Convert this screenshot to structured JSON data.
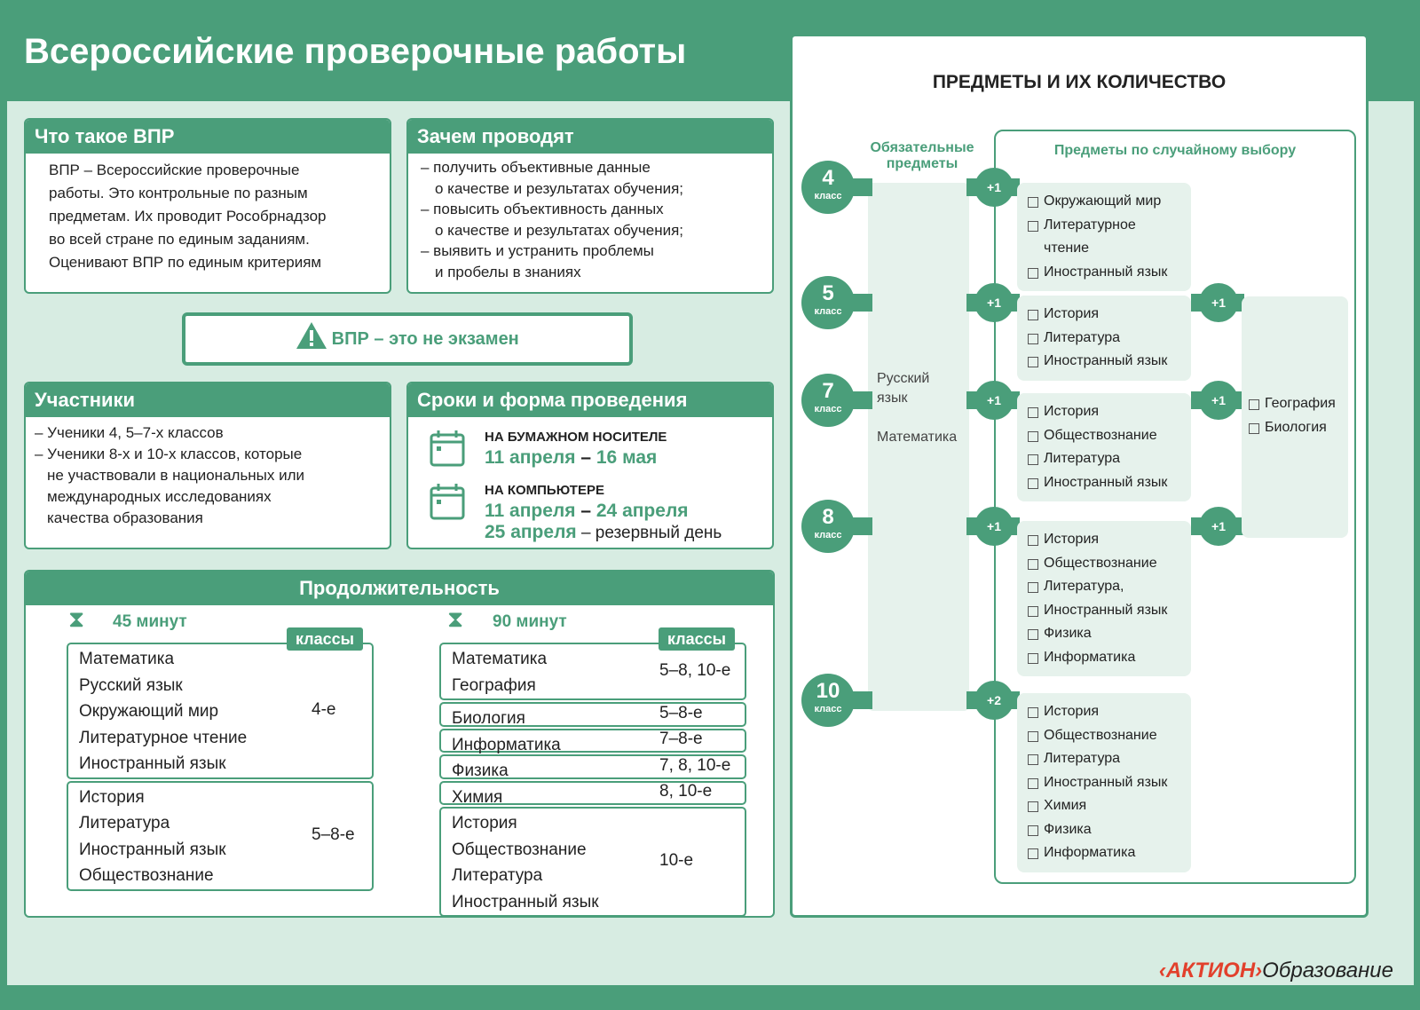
{
  "title": "Всероссийские проверочные работы",
  "what": {
    "heading": "Что такое ВПР",
    "lines": [
      "ВПР – Всероссийские проверочные",
      "работы. Это контрольные по разным",
      "предметам. Их проводит Рособрнадзор",
      "во всей стране по единым заданиям.",
      "Оценивают ВПР по единым критериям"
    ]
  },
  "why": {
    "heading": "Зачем проводят",
    "lines": [
      "– получить объективные данные",
      "о качестве и результатах обучения;",
      "– повысить объективность данных",
      "о качестве и результатах обучения;",
      "– выявить и устранить проблемы",
      "и пробелы в знаниях"
    ]
  },
  "warning": {
    "icon": "warning-icon",
    "text": "ВПР – это не экзамен"
  },
  "participants": {
    "heading": "Участники",
    "lines": [
      "– Ученики 4, 5–7-х классов",
      "– Ученики 8-х и 10-х классов, которые",
      "не участвовали в национальных или",
      "международных исследованиях",
      "качества образования"
    ]
  },
  "dates": {
    "heading": "Сроки и форма проведения",
    "paper_label": "НА БУМАЖНОМ НОСИТЕЛЕ",
    "paper_from": "11 апреля",
    "paper_to": "16 мая",
    "computer_label": "НА КОМПЬЮТЕРЕ",
    "computer_from": "11 апреля",
    "computer_to": "24 апреля",
    "reserve_date": "25 апреля",
    "reserve_text": "– резервный день",
    "dash": "–"
  },
  "duration": {
    "heading": "Продолжительность",
    "classes_label": "классы",
    "short": {
      "label": "45 минут",
      "groups": [
        {
          "subjects": [
            "Математика",
            "Русский язык",
            "Окружающий мир",
            "Литературное чтение",
            "Иностранный язык"
          ],
          "grades": "4-е"
        },
        {
          "subjects": [
            "История",
            "Литература",
            "Иностранный язык",
            "Обществознание"
          ],
          "grades": "5–8-е"
        }
      ]
    },
    "long": {
      "label": "90 минут",
      "groups": [
        {
          "subjects": [
            "Математика",
            "География"
          ],
          "grades": "5–8, 10-е"
        },
        {
          "subjects": [
            "Биология"
          ],
          "grades": "5–8-е"
        },
        {
          "subjects": [
            "Информатика"
          ],
          "grades": "7–8-е"
        },
        {
          "subjects": [
            "Физика"
          ],
          "grades": "7, 8, 10-е"
        },
        {
          "subjects": [
            "Химия"
          ],
          "grades": "8, 10-е"
        },
        {
          "subjects": [
            "История",
            "Обществознание",
            "Литература",
            "Иностранный язык"
          ],
          "grades": "10-е"
        }
      ]
    }
  },
  "subjects": {
    "heading": "ПРЕДМЕТЫ И ИХ КОЛИЧЕСТВО",
    "required_heading": "Обязательные предметы",
    "random_heading": "Предметы по случайному выбору",
    "required": [
      "Русский язык",
      "Математика"
    ],
    "grade_word": "класс",
    "grades": [
      {
        "grade": "4",
        "plus": "+1",
        "items": [
          "Окружающий мир",
          "Литературное чтение",
          "Иностранный язык"
        ]
      },
      {
        "grade": "5",
        "plus": "+1",
        "items": [
          "История",
          "Литература",
          "Иностранный язык"
        ],
        "plus2": "+1"
      },
      {
        "grade": "7",
        "plus": "+1",
        "items": [
          "История",
          "Обществознание",
          "Литература",
          "Иностранный язык"
        ],
        "plus2": "+1"
      },
      {
        "grade": "8",
        "plus": "+1",
        "items": [
          "История",
          "Обществознание",
          "Литература,",
          "Иностранный язык",
          "Физика",
          "Информатика"
        ],
        "plus2": "+1"
      },
      {
        "grade": "10",
        "plus": "+2",
        "items": [
          "История",
          "Обществознание",
          "Литература",
          "Иностранный язык",
          "Химия",
          "Физика",
          "Информатика"
        ]
      }
    ],
    "extra": [
      "География",
      "Биология"
    ]
  },
  "logo": {
    "brand": "‹АКТИОН›",
    "suffix": "Образование"
  },
  "colors": {
    "accent": "#4a9e7a",
    "light": "#d7ece2"
  }
}
